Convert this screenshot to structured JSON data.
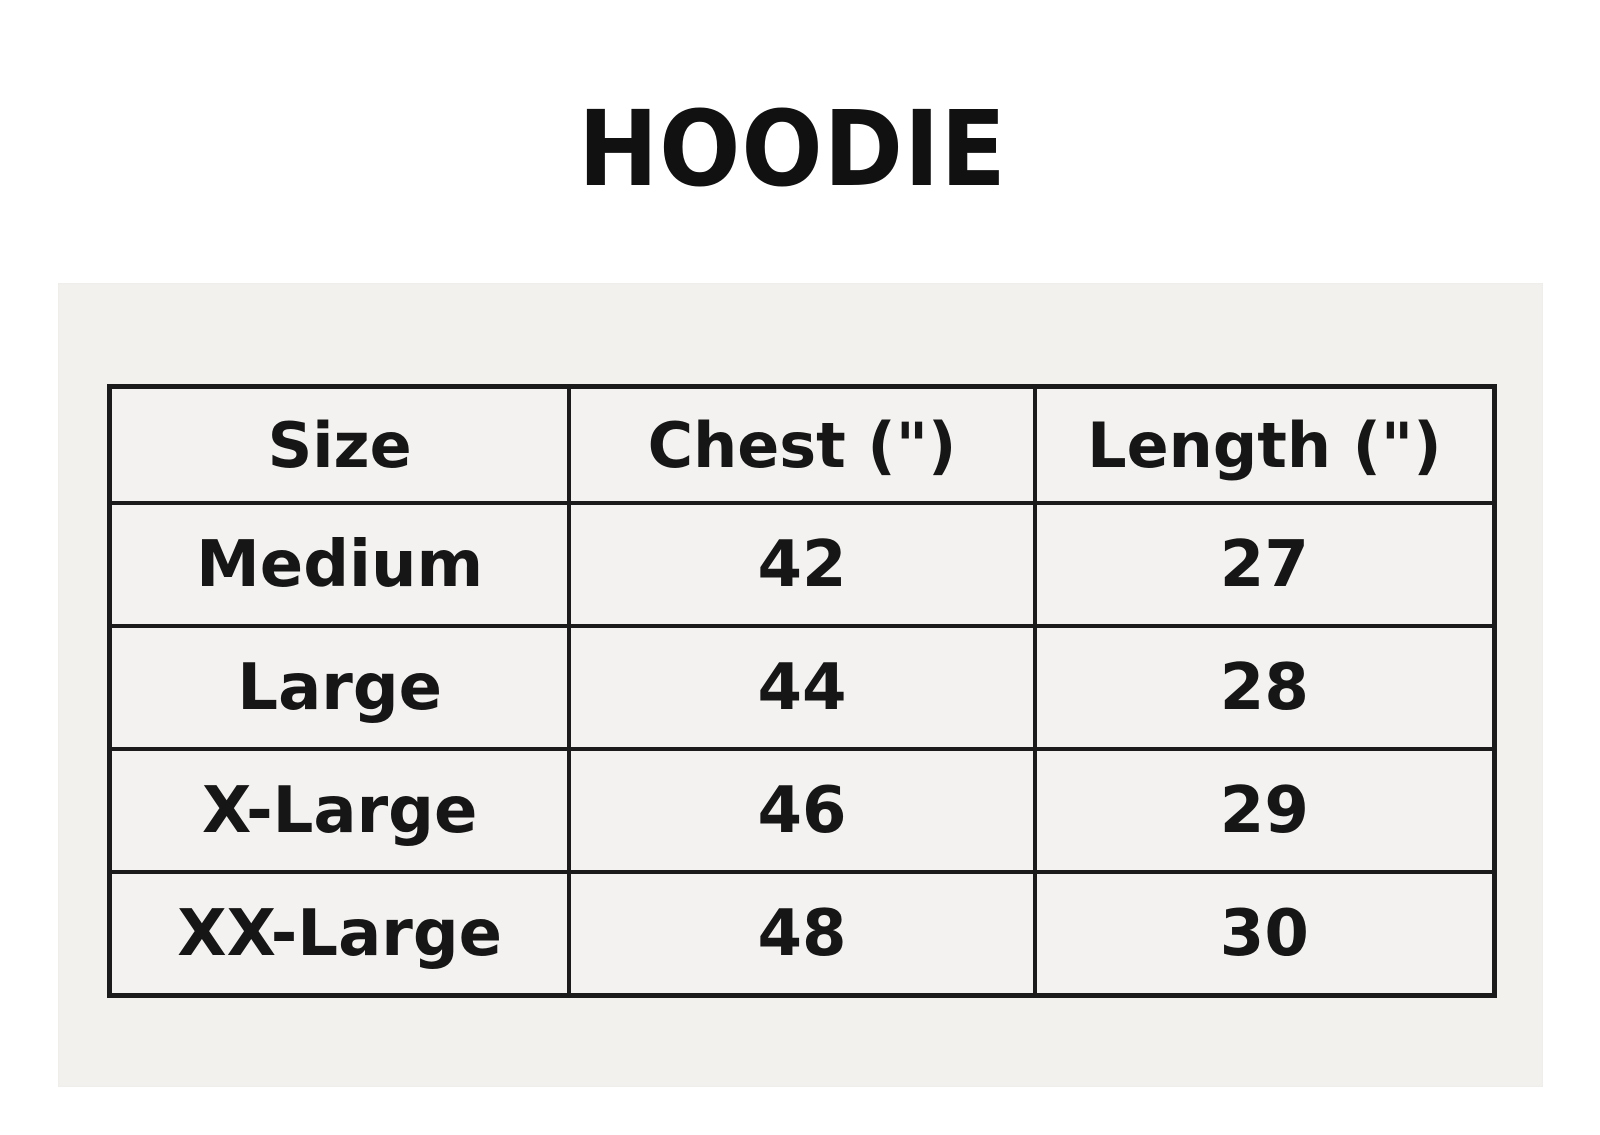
{
  "page": {
    "background_color": "#ffffff",
    "panel_color": "#f2f1ee",
    "border_color": "#1b1b1b",
    "text_color": "#161616"
  },
  "title": "HOODIE",
  "table": {
    "headers": [
      "Size",
      "Chest (\")",
      "Length (\")"
    ],
    "rows": [
      [
        "Medium",
        "42",
        "27"
      ],
      [
        "Large",
        "44",
        "28"
      ],
      [
        "X-Large",
        "46",
        "29"
      ],
      [
        "XX-Large",
        "48",
        "30"
      ]
    ]
  }
}
